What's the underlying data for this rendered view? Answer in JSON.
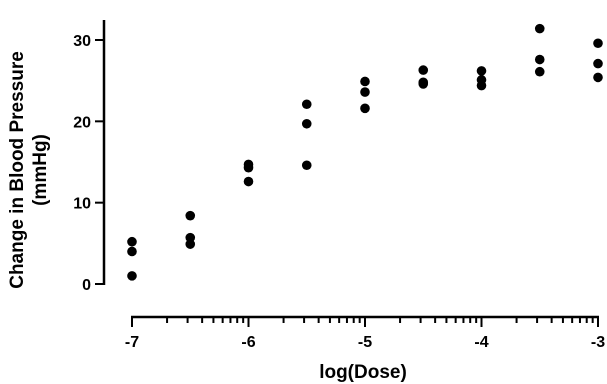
{
  "chart_data": {
    "type": "scatter",
    "title": "",
    "xlabel": "log(Dose)",
    "ylabel_lines": [
      "Change in Blood Pressure",
      "(mmHg)"
    ],
    "xlim": [
      -7,
      -3
    ],
    "ylim": [
      0,
      30
    ],
    "x_ticks": [
      -7,
      -6,
      -5,
      -4,
      -3
    ],
    "y_ticks": [
      0,
      10,
      20,
      30
    ],
    "x_tick_labels": [
      "-7",
      "-6",
      "-5",
      "-4",
      "-3"
    ],
    "y_tick_labels": [
      "0",
      "10",
      "20",
      "30"
    ],
    "x_scale_minor": "log-style minor ticks between decades",
    "grid": false,
    "legend": "none",
    "point_color": "#000000",
    "points": [
      {
        "x": -7,
        "y": 1.0
      },
      {
        "x": -7,
        "y": 4.0
      },
      {
        "x": -7,
        "y": 5.2
      },
      {
        "x": -6.5,
        "y": 4.9
      },
      {
        "x": -6.5,
        "y": 5.7
      },
      {
        "x": -6.5,
        "y": 8.4
      },
      {
        "x": -6,
        "y": 12.6
      },
      {
        "x": -6,
        "y": 14.3
      },
      {
        "x": -6,
        "y": 14.7
      },
      {
        "x": -5.5,
        "y": 14.6
      },
      {
        "x": -5.5,
        "y": 19.7
      },
      {
        "x": -5.5,
        "y": 22.1
      },
      {
        "x": -5,
        "y": 21.6
      },
      {
        "x": -5,
        "y": 23.6
      },
      {
        "x": -5,
        "y": 24.9
      },
      {
        "x": -4.5,
        "y": 24.6
      },
      {
        "x": -4.5,
        "y": 24.8
      },
      {
        "x": -4.5,
        "y": 26.3
      },
      {
        "x": -4,
        "y": 24.4
      },
      {
        "x": -4,
        "y": 25.1
      },
      {
        "x": -4,
        "y": 26.2
      },
      {
        "x": -3.5,
        "y": 26.1
      },
      {
        "x": -3.5,
        "y": 27.6
      },
      {
        "x": -3.5,
        "y": 31.4
      },
      {
        "x": -3,
        "y": 25.4
      },
      {
        "x": -3,
        "y": 27.1
      },
      {
        "x": -3,
        "y": 29.6
      }
    ]
  }
}
